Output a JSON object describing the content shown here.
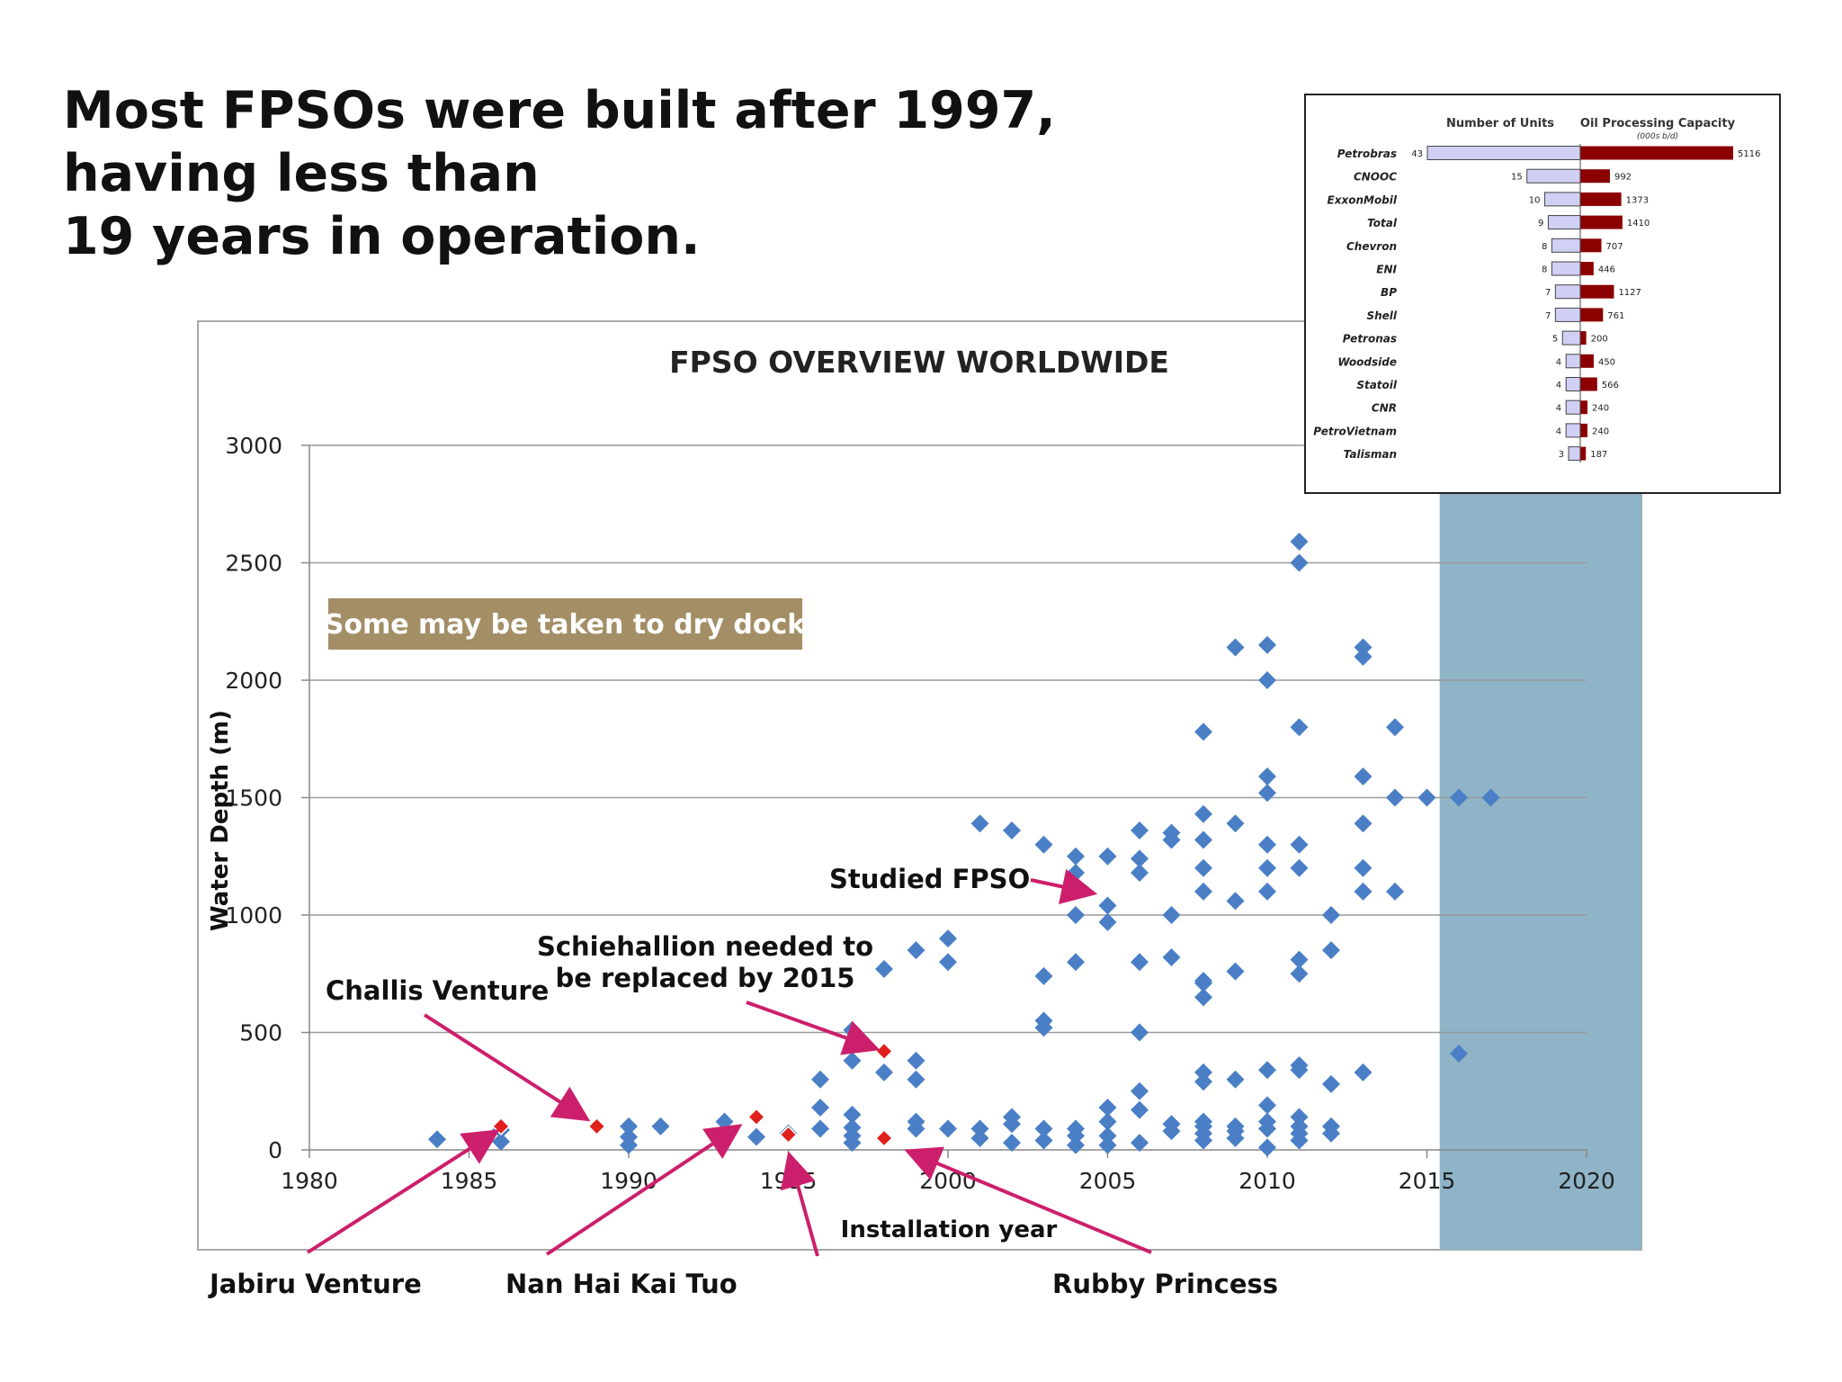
{
  "heading": {
    "line1": "Most FPSOs were built after 1997, having less than",
    "line2": "19 years in operation."
  },
  "colors": {
    "point": "#4a7fc6",
    "highlight_point": "#e0201b",
    "arrow": "#cc1f6b",
    "future_band": "#8fb4c8",
    "callout_box": "#a38e66",
    "units_bar": "#d0d0f5",
    "capacity_bar": "#8b0000"
  },
  "chart_data": [
    {
      "type": "scatter",
      "title": "FPSO OVERVIEW  WORLDWIDE",
      "xlabel": "Installation year",
      "ylabel": "Water Depth (m)",
      "xlim": [
        1980,
        2020
      ],
      "ylim": [
        0,
        3000
      ],
      "xticks": [
        1980,
        1985,
        1990,
        1995,
        2000,
        2005,
        2010,
        2015,
        2020
      ],
      "yticks": [
        0,
        500,
        1000,
        1500,
        2000,
        2500,
        3000
      ],
      "grid": "horizontal",
      "shaded_range": [
        2015.4,
        2021.7
      ],
      "callout": "Some may be taken to dry dock",
      "series": [
        {
          "points": [
            [
              1984,
              45
            ],
            [
              1986,
              35
            ],
            [
              1986,
              85
            ],
            [
              1990,
              20
            ],
            [
              1990,
              55
            ],
            [
              1990,
              100
            ],
            [
              1991,
              100
            ],
            [
              1993,
              120
            ],
            [
              1994,
              55
            ],
            [
              1995,
              70
            ],
            [
              1996,
              90
            ],
            [
              1996,
              180
            ],
            [
              1996,
              300
            ],
            [
              1997,
              30
            ],
            [
              1997,
              60
            ],
            [
              1997,
              95
            ],
            [
              1997,
              150
            ],
            [
              1997,
              380
            ],
            [
              1997,
              510
            ],
            [
              1998,
              330
            ],
            [
              1998,
              770
            ],
            [
              1999,
              90
            ],
            [
              1999,
              120
            ],
            [
              1999,
              300
            ],
            [
              1999,
              380
            ],
            [
              1999,
              850
            ],
            [
              2000,
              90
            ],
            [
              2000,
              800
            ],
            [
              2000,
              900
            ],
            [
              2001,
              50
            ],
            [
              2001,
              90
            ],
            [
              2001,
              1390
            ],
            [
              2002,
              30
            ],
            [
              2002,
              110
            ],
            [
              2002,
              140
            ],
            [
              2002,
              1360
            ],
            [
              2003,
              40
            ],
            [
              2003,
              90
            ],
            [
              2003,
              520
            ],
            [
              2003,
              550
            ],
            [
              2003,
              740
            ],
            [
              2003,
              1300
            ],
            [
              2004,
              20
            ],
            [
              2004,
              60
            ],
            [
              2004,
              90
            ],
            [
              2004,
              1000
            ],
            [
              2004,
              800
            ],
            [
              2004,
              1180
            ],
            [
              2004,
              1250
            ],
            [
              2005,
              20
            ],
            [
              2005,
              60
            ],
            [
              2005,
              120
            ],
            [
              2005,
              180
            ],
            [
              2005,
              970
            ],
            [
              2005,
              1040
            ],
            [
              2005,
              1250
            ],
            [
              2006,
              30
            ],
            [
              2006,
              170
            ],
            [
              2006,
              250
            ],
            [
              2006,
              500
            ],
            [
              2006,
              800
            ],
            [
              2006,
              1180
            ],
            [
              2006,
              1240
            ],
            [
              2006,
              1360
            ],
            [
              2007,
              80
            ],
            [
              2007,
              110
            ],
            [
              2007,
              820
            ],
            [
              2007,
              1000
            ],
            [
              2007,
              1320
            ],
            [
              2007,
              1350
            ],
            [
              2008,
              40
            ],
            [
              2008,
              70
            ],
            [
              2008,
              100
            ],
            [
              2008,
              120
            ],
            [
              2008,
              290
            ],
            [
              2008,
              330
            ],
            [
              2008,
              650
            ],
            [
              2008,
              710
            ],
            [
              2008,
              720
            ],
            [
              2008,
              1100
            ],
            [
              2008,
              1200
            ],
            [
              2008,
              1320
            ],
            [
              2008,
              1430
            ],
            [
              2008,
              1780
            ],
            [
              2009,
              50
            ],
            [
              2009,
              80
            ],
            [
              2009,
              100
            ],
            [
              2009,
              300
            ],
            [
              2009,
              760
            ],
            [
              2009,
              1060
            ],
            [
              2009,
              1390
            ],
            [
              2009,
              2140
            ],
            [
              2010,
              10
            ],
            [
              2010,
              90
            ],
            [
              2010,
              120
            ],
            [
              2010,
              190
            ],
            [
              2010,
              340
            ],
            [
              2010,
              1100
            ],
            [
              2010,
              1200
            ],
            [
              2010,
              1300
            ],
            [
              2010,
              1520
            ],
            [
              2010,
              1590
            ],
            [
              2010,
              2000
            ],
            [
              2010,
              2150
            ],
            [
              2011,
              40
            ],
            [
              2011,
              70
            ],
            [
              2011,
              100
            ],
            [
              2011,
              140
            ],
            [
              2011,
              340
            ],
            [
              2011,
              360
            ],
            [
              2011,
              750
            ],
            [
              2011,
              810
            ],
            [
              2011,
              1200
            ],
            [
              2011,
              1300
            ],
            [
              2011,
              1800
            ],
            [
              2011,
              2500
            ],
            [
              2011,
              2590
            ],
            [
              2012,
              70
            ],
            [
              2012,
              100
            ],
            [
              2012,
              280
            ],
            [
              2012,
              850
            ],
            [
              2012,
              1000
            ],
            [
              2013,
              330
            ],
            [
              2013,
              1100
            ],
            [
              2013,
              1200
            ],
            [
              2013,
              1390
            ],
            [
              2013,
              1590
            ],
            [
              2013,
              2100
            ],
            [
              2013,
              2140
            ],
            [
              2014,
              1100
            ],
            [
              2014,
              1500
            ],
            [
              2014,
              1800
            ],
            [
              2015,
              1500
            ],
            [
              2016,
              1500
            ],
            [
              2016,
              410
            ],
            [
              2017,
              1500
            ]
          ]
        },
        {
          "points": [
            [
              1986,
              100
            ],
            [
              1989,
              100
            ],
            [
              1994,
              140
            ],
            [
              1995,
              65
            ],
            [
              1998,
              50
            ],
            [
              1998,
              420
            ]
          ]
        }
      ],
      "annotations": [
        {
          "text": "Challis Venture",
          "target": [
            1989,
            100
          ]
        },
        {
          "text": "Jabiru Venture",
          "target": [
            1986,
            40
          ]
        },
        {
          "text": "Nan Hai Kai Tuo",
          "target": [
            1993.6,
            70
          ]
        },
        {
          "text": "Schiehallion needed  to",
          "text2": "be replaced by 2015",
          "target": [
            1998,
            420
          ]
        },
        {
          "text": "Rubby Princess",
          "target": [
            1998.5,
            20
          ]
        },
        {
          "text": "Studied FPSO",
          "target": [
            2004.8,
            1080
          ]
        }
      ]
    },
    {
      "type": "bar",
      "header_units": "Number of Units",
      "header_capacity": "Oil Processing Capacity",
      "header_capacity_unit": "(000s b/d)",
      "categories": [
        "Petrobras",
        "CNOOC",
        "ExxonMobil",
        "Total",
        "Chevron",
        "ENI",
        "BP",
        "Shell",
        "Petronas",
        "Woodside",
        "Statoil",
        "CNR",
        "PetroVietnam",
        "Talisman"
      ],
      "series": [
        {
          "name": "Number of Units",
          "values": [
            43,
            15,
            10,
            9,
            8,
            8,
            7,
            7,
            5,
            4,
            4,
            4,
            4,
            3
          ]
        },
        {
          "name": "Oil Processing Capacity",
          "values": [
            5116,
            992,
            1373,
            1410,
            707,
            446,
            1127,
            761,
            200,
            450,
            566,
            240,
            240,
            187
          ]
        }
      ]
    }
  ]
}
